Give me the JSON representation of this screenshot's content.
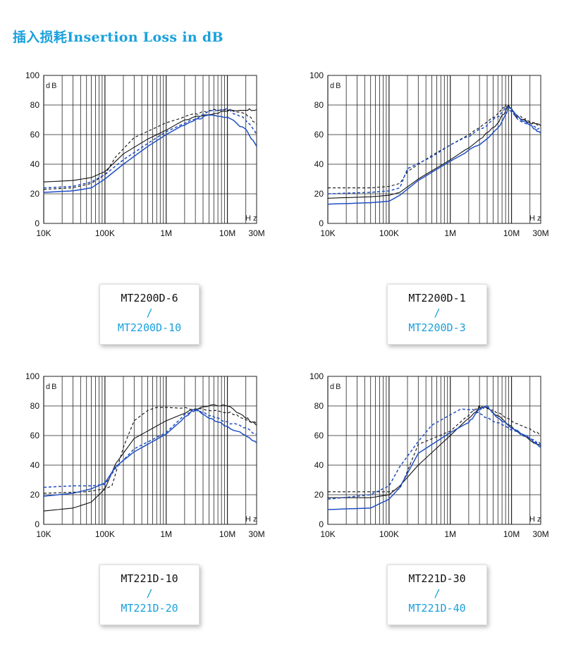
{
  "header": {
    "title": "插入损耗Insertion Loss in dB"
  },
  "colors": {
    "title": "#1aa0dc",
    "black_series": "#111111",
    "blue_series": "#1f4fc4",
    "legend_blue": "#1aa0dc",
    "grid": "#222222"
  },
  "chart_data": [
    {
      "type": "line",
      "x_scale": "log",
      "xlim": [
        "10K",
        "30M"
      ],
      "ylim": [
        0,
        100
      ],
      "ylabel": "dB",
      "xlabel": "Hz",
      "yticks": [
        "0",
        "20",
        "40",
        "60",
        "80",
        "100"
      ],
      "xticks": [
        "10K",
        "100K",
        "1M",
        "10M",
        "30M"
      ],
      "legend": [
        "MT2200D-6",
        "/",
        "MT2200D-10"
      ],
      "series": [
        {
          "name": "MT2200D-6",
          "color": "black",
          "style": "solid",
          "x": [
            10000,
            30000,
            60000,
            100000,
            200000,
            500000,
            1000000,
            2000000,
            5000000,
            10000000,
            20000000,
            30000000
          ],
          "y": [
            28,
            29,
            31,
            35,
            47,
            57,
            63,
            70,
            74,
            76,
            77,
            77
          ]
        },
        {
          "name": "MT2200D-6",
          "color": "black",
          "style": "dashed",
          "x": [
            10000,
            30000,
            60000,
            100000,
            150000,
            300000,
            1000000,
            3000000,
            5000000,
            10000000,
            20000000,
            30000000
          ],
          "y": [
            23,
            24,
            27,
            33,
            45,
            58,
            68,
            74,
            76,
            77,
            74,
            67
          ]
        },
        {
          "name": "MT2200D-10",
          "color": "blue",
          "style": "solid",
          "x": [
            10000,
            30000,
            60000,
            100000,
            200000,
            500000,
            1000000,
            2000000,
            5000000,
            10000000,
            20000000,
            30000000
          ],
          "y": [
            21,
            22,
            24,
            30,
            40,
            52,
            60,
            67,
            73,
            72,
            63,
            52
          ]
        },
        {
          "name": "MT2200D-10",
          "color": "blue",
          "style": "dashed",
          "x": [
            10000,
            30000,
            60000,
            100000,
            200000,
            500000,
            1000000,
            3000000,
            5000000,
            10000000,
            20000000,
            30000000
          ],
          "y": [
            24,
            25,
            28,
            33,
            43,
            54,
            62,
            71,
            76,
            77,
            70,
            60
          ]
        }
      ]
    },
    {
      "type": "line",
      "x_scale": "log",
      "xlim": [
        "10K",
        "30M"
      ],
      "ylim": [
        0,
        100
      ],
      "ylabel": "dB",
      "xlabel": "Hz",
      "yticks": [
        "0",
        "20",
        "40",
        "60",
        "80",
        "100"
      ],
      "xticks": [
        "10K",
        "100K",
        "1M",
        "10M",
        "30M"
      ],
      "legend": [
        "MT2200D-1",
        "/",
        "MT2200D-3"
      ],
      "series": [
        {
          "name": "MT2200D-1",
          "color": "black",
          "style": "solid",
          "x": [
            10000,
            50000,
            100000,
            150000,
            300000,
            1000000,
            3000000,
            6000000,
            8000000,
            9000000,
            12000000,
            20000000,
            30000000
          ],
          "y": [
            17,
            18,
            19,
            21,
            30,
            43,
            56,
            68,
            76,
            80,
            72,
            68,
            66
          ]
        },
        {
          "name": "MT2200D-1",
          "color": "black",
          "style": "dashed",
          "x": [
            10000,
            50000,
            100000,
            150000,
            200000,
            500000,
            1000000,
            3000000,
            6000000,
            8000000,
            9000000,
            12000000,
            20000000,
            30000000
          ],
          "y": [
            24,
            24,
            25,
            27,
            35,
            46,
            53,
            64,
            74,
            80,
            79,
            73,
            69,
            66
          ]
        },
        {
          "name": "MT2200D-3",
          "color": "blue",
          "style": "solid",
          "x": [
            10000,
            50000,
            100000,
            150000,
            300000,
            1000000,
            3000000,
            6000000,
            8000000,
            9000000,
            12000000,
            20000000,
            30000000
          ],
          "y": [
            13,
            14,
            15,
            19,
            29,
            42,
            53,
            64,
            73,
            79,
            73,
            66,
            61
          ]
        },
        {
          "name": "MT2200D-3",
          "color": "blue",
          "style": "dashed",
          "x": [
            10000,
            50000,
            100000,
            150000,
            200000,
            500000,
            1000000,
            3000000,
            6000000,
            8000000,
            9000000,
            12000000,
            20000000,
            30000000
          ],
          "y": [
            20,
            21,
            22,
            24,
            37,
            45,
            53,
            63,
            72,
            78,
            78,
            71,
            66,
            63
          ]
        }
      ]
    },
    {
      "type": "line",
      "x_scale": "log",
      "xlim": [
        "10K",
        "30M"
      ],
      "ylim": [
        0,
        100
      ],
      "ylabel": "dB",
      "xlabel": "Hz",
      "yticks": [
        "0",
        "20",
        "40",
        "60",
        "80",
        "100"
      ],
      "xticks": [
        "10K",
        "100K",
        "1M",
        "10M",
        "30M"
      ],
      "legend": [
        "MT221D-10",
        "/",
        "MT221D-20"
      ],
      "series": [
        {
          "name": "MT221D-10",
          "color": "black",
          "style": "solid",
          "x": [
            10000,
            30000,
            60000,
            100000,
            150000,
            300000,
            1000000,
            3000000,
            6000000,
            10000000,
            20000000,
            30000000
          ],
          "y": [
            9,
            11,
            15,
            24,
            41,
            58,
            70,
            78,
            81,
            80,
            72,
            67
          ]
        },
        {
          "name": "MT221D-10",
          "color": "black",
          "style": "dashed",
          "x": [
            10000,
            50000,
            100000,
            130000,
            200000,
            300000,
            500000,
            700000,
            1000000,
            3000000,
            10000000,
            20000000,
            30000000
          ],
          "y": [
            21,
            22,
            24,
            26,
            52,
            70,
            77,
            79,
            79,
            78,
            76,
            71,
            68
          ]
        },
        {
          "name": "MT221D-20",
          "color": "blue",
          "style": "solid",
          "x": [
            10000,
            30000,
            60000,
            100000,
            150000,
            300000,
            1000000,
            2000000,
            3000000,
            5000000,
            10000000,
            20000000,
            30000000
          ],
          "y": [
            19,
            21,
            24,
            28,
            39,
            49,
            61,
            72,
            78,
            72,
            66,
            60,
            55
          ]
        },
        {
          "name": "MT221D-20",
          "color": "blue",
          "style": "dashed",
          "x": [
            10000,
            30000,
            60000,
            100000,
            150000,
            300000,
            1000000,
            2000000,
            3000000,
            5000000,
            10000000,
            20000000,
            30000000
          ],
          "y": [
            25,
            26,
            26,
            27,
            38,
            51,
            62,
            74,
            78,
            74,
            69,
            65,
            61
          ]
        }
      ]
    },
    {
      "type": "line",
      "x_scale": "log",
      "xlim": [
        "10K",
        "30M"
      ],
      "ylim": [
        0,
        100
      ],
      "ylabel": "dB",
      "xlabel": "Hz",
      "yticks": [
        "0",
        "20",
        "40",
        "60",
        "80",
        "100"
      ],
      "xticks": [
        "10K",
        "100K",
        "1M",
        "10M",
        "30M"
      ],
      "legend": [
        "MT221D-30",
        "/",
        "MT221D-40"
      ],
      "series": [
        {
          "name": "MT221D-30",
          "color": "black",
          "style": "solid",
          "x": [
            10000,
            50000,
            100000,
            150000,
            300000,
            1000000,
            2000000,
            3000000,
            4000000,
            10000000,
            20000000,
            30000000
          ],
          "y": [
            18,
            18,
            20,
            26,
            40,
            60,
            72,
            79,
            79,
            66,
            57,
            53
          ]
        },
        {
          "name": "MT221D-30",
          "color": "black",
          "style": "dashed",
          "x": [
            10000,
            50000,
            100000,
            150000,
            200000,
            300000,
            1000000,
            2000000,
            3000000,
            5000000,
            10000000,
            20000000,
            30000000
          ],
          "y": [
            22,
            22,
            22,
            24,
            36,
            54,
            63,
            74,
            80,
            77,
            70,
            64,
            61
          ]
        },
        {
          "name": "MT221D-40",
          "color": "blue",
          "style": "solid",
          "x": [
            10000,
            50000,
            100000,
            150000,
            300000,
            1000000,
            2000000,
            3000000,
            4000000,
            5000000,
            10000000,
            20000000,
            30000000
          ],
          "y": [
            10,
            11,
            17,
            25,
            48,
            62,
            69,
            78,
            80,
            75,
            65,
            58,
            52
          ]
        },
        {
          "name": "MT221D-40",
          "color": "blue",
          "style": "dashed",
          "x": [
            10000,
            50000,
            100000,
            150000,
            300000,
            500000,
            1000000,
            1500000,
            2500000,
            4000000,
            10000000,
            20000000,
            30000000
          ],
          "y": [
            17,
            20,
            26,
            39,
            56,
            67,
            74,
            78,
            77,
            72,
            64,
            58,
            54
          ]
        }
      ]
    }
  ]
}
